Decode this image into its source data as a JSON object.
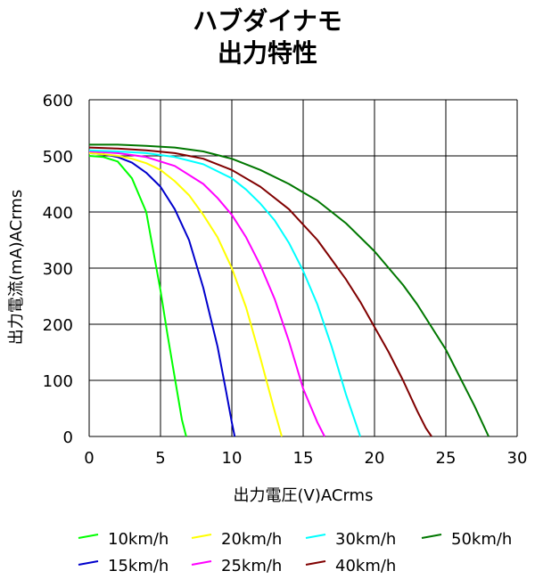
{
  "chart_data": {
    "type": "line",
    "title": "ハブダイナモ",
    "subtitle": "出力特性",
    "xlabel": "出力電圧(V)ACrms",
    "ylabel": "出力電流(mA)ACrms",
    "xlim": [
      0,
      30
    ],
    "ylim": [
      0,
      600
    ],
    "xticks": [
      "0",
      "5",
      "10",
      "15",
      "20",
      "25",
      "30"
    ],
    "yticks": [
      "0",
      "100",
      "200",
      "300",
      "400",
      "500",
      "600"
    ],
    "grid": true,
    "legend": "bottom",
    "series": [
      {
        "name": "10km/h",
        "color": "#00ff00",
        "x": [
          0,
          1,
          2,
          3,
          3.5,
          4,
          4.5,
          5,
          5.5,
          6,
          6.5,
          6.8
        ],
        "y": [
          500,
          498,
          490,
          460,
          430,
          400,
          330,
          260,
          180,
          105,
          30,
          0
        ]
      },
      {
        "name": "15km/h",
        "color": "#0000cc",
        "x": [
          0,
          1,
          2,
          3,
          4,
          5,
          6,
          7,
          8,
          9,
          9.6,
          10,
          10.2
        ],
        "y": [
          505,
          503,
          498,
          488,
          470,
          445,
          405,
          350,
          265,
          160,
          80,
          25,
          0
        ]
      },
      {
        "name": "20km/h",
        "color": "#ffff00",
        "x": [
          0,
          1,
          2,
          3,
          4,
          5,
          6,
          7,
          8,
          9,
          10,
          11,
          12,
          13,
          13.5
        ],
        "y": [
          505,
          503,
          500,
          495,
          487,
          475,
          455,
          430,
          395,
          355,
          300,
          230,
          140,
          45,
          0
        ]
      },
      {
        "name": "25km/h",
        "color": "#ff00ff",
        "x": [
          0,
          2,
          4,
          6,
          8,
          9,
          10,
          11,
          12,
          13,
          14,
          15,
          16,
          16.5
        ],
        "y": [
          508,
          505,
          498,
          482,
          450,
          425,
          395,
          355,
          305,
          245,
          170,
          85,
          25,
          0
        ]
      },
      {
        "name": "30km/h",
        "color": "#00ffff",
        "x": [
          0,
          2,
          4,
          6,
          8,
          10,
          11,
          12,
          13,
          14,
          15,
          16,
          17,
          18,
          18.6,
          19
        ],
        "y": [
          510,
          508,
          505,
          498,
          485,
          460,
          440,
          415,
          385,
          345,
          295,
          235,
          160,
          75,
          30,
          0
        ]
      },
      {
        "name": "40km/h",
        "color": "#800000",
        "x": [
          0,
          2,
          4,
          6,
          8,
          10,
          12,
          14,
          16,
          17,
          18,
          19,
          20,
          21,
          22,
          23,
          23.6,
          24
        ],
        "y": [
          515,
          513,
          510,
          505,
          495,
          475,
          445,
          405,
          350,
          315,
          280,
          240,
          195,
          150,
          100,
          45,
          15,
          0
        ]
      },
      {
        "name": "50km/h",
        "color": "#007700",
        "x": [
          0,
          2,
          4,
          6,
          8,
          10,
          12,
          14,
          16,
          18,
          20,
          22,
          23,
          24,
          25,
          26,
          27,
          28
        ],
        "y": [
          520,
          520,
          518,
          515,
          508,
          495,
          475,
          450,
          420,
          380,
          330,
          270,
          235,
          195,
          155,
          105,
          55,
          0
        ]
      }
    ]
  }
}
